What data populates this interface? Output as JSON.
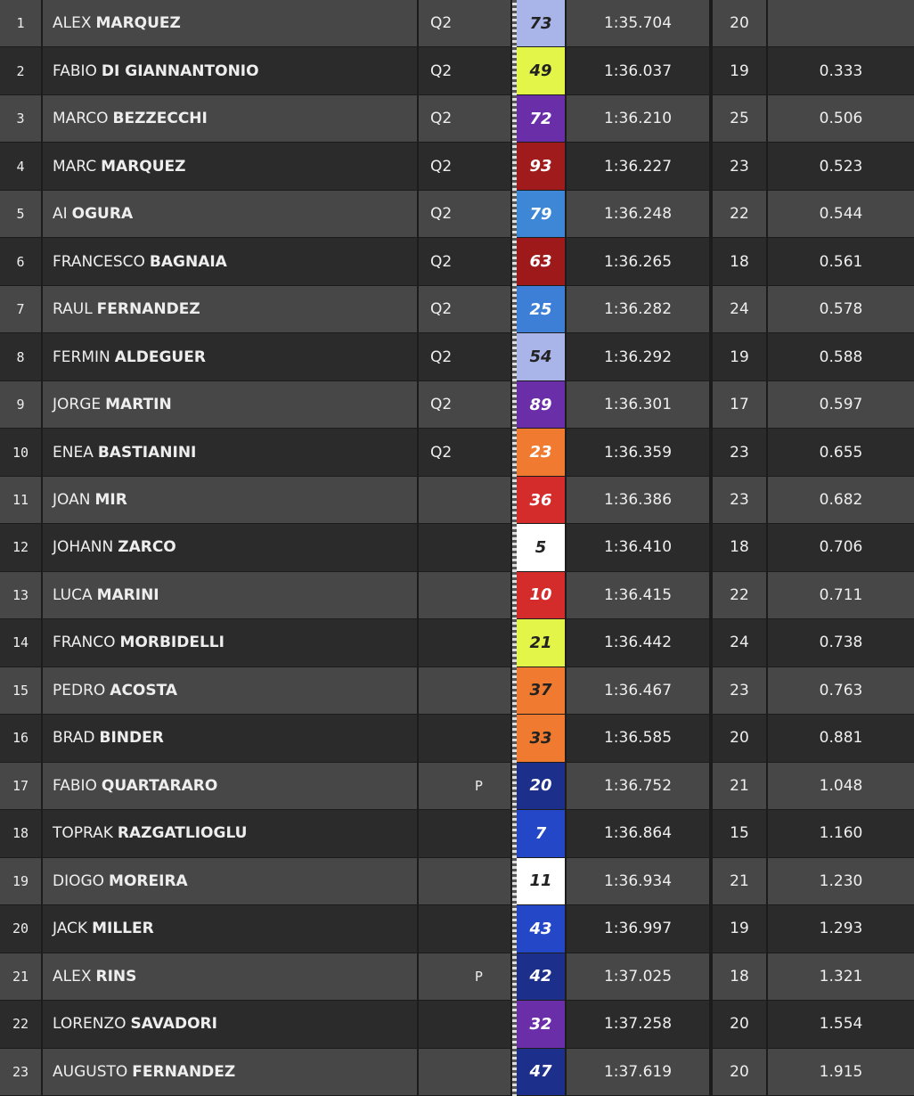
{
  "table": {
    "rows": [
      {
        "pos": "1",
        "first": "ALEX",
        "last": "MARQUEZ",
        "session": "Q2",
        "number": "73",
        "color": "#a9b4e8",
        "text_color": "#222222",
        "time": "1:35.704",
        "laps": "20"
      },
      {
        "pos": "2",
        "first": "FABIO",
        "last": "DI GIANNANTONIO",
        "session": "Q2",
        "number": "49",
        "color": "#e4f54a",
        "text_color": "#222222",
        "time": "1:36.037",
        "laps": "19",
        "gap": "0.333"
      },
      {
        "pos": "3",
        "first": "MARCO",
        "last": "BEZZECCHI",
        "session": "Q2",
        "number": "72",
        "color": "#6a2fa8",
        "text_color": "#ffffff",
        "time": "1:36.210",
        "laps": "25",
        "gap": "0.506"
      },
      {
        "pos": "4",
        "first": "MARC",
        "last": "MARQUEZ",
        "session": "Q2",
        "number": "93",
        "color": "#a01c1c",
        "text_color": "#ffffff",
        "time": "1:36.227",
        "laps": "23",
        "gap": "0.523"
      },
      {
        "pos": "5",
        "first": "AI",
        "last": "OGURA",
        "session": "Q2",
        "number": "79",
        "color": "#3d87d6",
        "text_color": "#ffffff",
        "time": "1:36.248",
        "laps": "22",
        "gap": "0.544"
      },
      {
        "pos": "6",
        "first": "FRANCESCO",
        "last": "BAGNAIA",
        "session": "Q2",
        "number": "63",
        "color": "#9e1a1a",
        "text_color": "#ffffff",
        "time": "1:36.265",
        "laps": "18",
        "gap": "0.561"
      },
      {
        "pos": "7",
        "first": "RAUL",
        "last": "FERNANDEZ",
        "session": "Q2",
        "number": "25",
        "color": "#3d7fd6",
        "text_color": "#ffffff",
        "time": "1:36.282",
        "laps": "24",
        "gap": "0.578"
      },
      {
        "pos": "8",
        "first": "FERMIN",
        "last": "ALDEGUER",
        "session": "Q2",
        "number": "54",
        "color": "#a9b4e8",
        "text_color": "#222222",
        "time": "1:36.292",
        "laps": "19",
        "gap": "0.588"
      },
      {
        "pos": "9",
        "first": "JORGE",
        "last": "MARTIN",
        "session": "Q2",
        "number": "89",
        "color": "#6a2fa8",
        "text_color": "#ffffff",
        "time": "1:36.301",
        "laps": "17",
        "gap": "0.597"
      },
      {
        "pos": "10",
        "first": "ENEA",
        "last": "BASTIANINI",
        "session": "Q2",
        "number": "23",
        "color": "#f07b30",
        "text_color": "#ffffff",
        "time": "1:36.359",
        "laps": "23",
        "gap": "0.655"
      },
      {
        "pos": "11",
        "first": "JOAN",
        "last": "MIR",
        "number": "36",
        "color": "#d42b2b",
        "text_color": "#ffffff",
        "time": "1:36.386",
        "laps": "23",
        "gap": "0.682"
      },
      {
        "pos": "12",
        "first": "JOHANN",
        "last": "ZARCO",
        "number": "5",
        "color": "#ffffff",
        "text_color": "#222222",
        "time": "1:36.410",
        "laps": "18",
        "gap": "0.706"
      },
      {
        "pos": "13",
        "first": "LUCA",
        "last": "MARINI",
        "number": "10",
        "color": "#d42b2b",
        "text_color": "#ffffff",
        "time": "1:36.415",
        "laps": "22",
        "gap": "0.711"
      },
      {
        "pos": "14",
        "first": "FRANCO",
        "last": "MORBIDELLI",
        "number": "21",
        "color": "#e4f54a",
        "text_color": "#222222",
        "time": "1:36.442",
        "laps": "24",
        "gap": "0.738"
      },
      {
        "pos": "15",
        "first": "PEDRO",
        "last": "ACOSTA",
        "number": "37",
        "color": "#f07b30",
        "text_color": "#222222",
        "time": "1:36.467",
        "laps": "23",
        "gap": "0.763"
      },
      {
        "pos": "16",
        "first": "BRAD",
        "last": "BINDER",
        "number": "33",
        "color": "#f07b30",
        "text_color": "#222222",
        "time": "1:36.585",
        "laps": "20",
        "gap": "0.881"
      },
      {
        "pos": "17",
        "first": "FABIO",
        "last": "QUARTARARO",
        "flag": "P",
        "number": "20",
        "color": "#1c2f8a",
        "text_color": "#ffffff",
        "time": "1:36.752",
        "laps": "21",
        "gap": "1.048"
      },
      {
        "pos": "18",
        "first": "TOPRAK",
        "last": "RAZGATLIOGLU",
        "number": "7",
        "color": "#2447c8",
        "text_color": "#ffffff",
        "time": "1:36.864",
        "laps": "15",
        "gap": "1.160"
      },
      {
        "pos": "19",
        "first": "DIOGO",
        "last": "MOREIRA",
        "number": "11",
        "color": "#ffffff",
        "text_color": "#222222",
        "time": "1:36.934",
        "laps": "21",
        "gap": "1.230"
      },
      {
        "pos": "20",
        "first": "JACK",
        "last": "MILLER",
        "number": "43",
        "color": "#2447c8",
        "text_color": "#ffffff",
        "time": "1:36.997",
        "laps": "19",
        "gap": "1.293"
      },
      {
        "pos": "21",
        "first": "ALEX",
        "last": "RINS",
        "flag": "P",
        "number": "42",
        "color": "#1c2f8a",
        "text_color": "#ffffff",
        "time": "1:37.025",
        "laps": "18",
        "gap": "1.321"
      },
      {
        "pos": "22",
        "first": "LORENZO",
        "last": "SAVADORI",
        "number": "32",
        "color": "#6a2fa8",
        "text_color": "#ffffff",
        "time": "1:37.258",
        "laps": "20",
        "gap": "1.554"
      },
      {
        "pos": "23",
        "first": "AUGUSTO",
        "last": "FERNANDEZ",
        "number": "47",
        "color": "#1c2f8a",
        "text_color": "#ffffff",
        "time": "1:37.619",
        "laps": "20",
        "gap": "1.915"
      }
    ]
  }
}
